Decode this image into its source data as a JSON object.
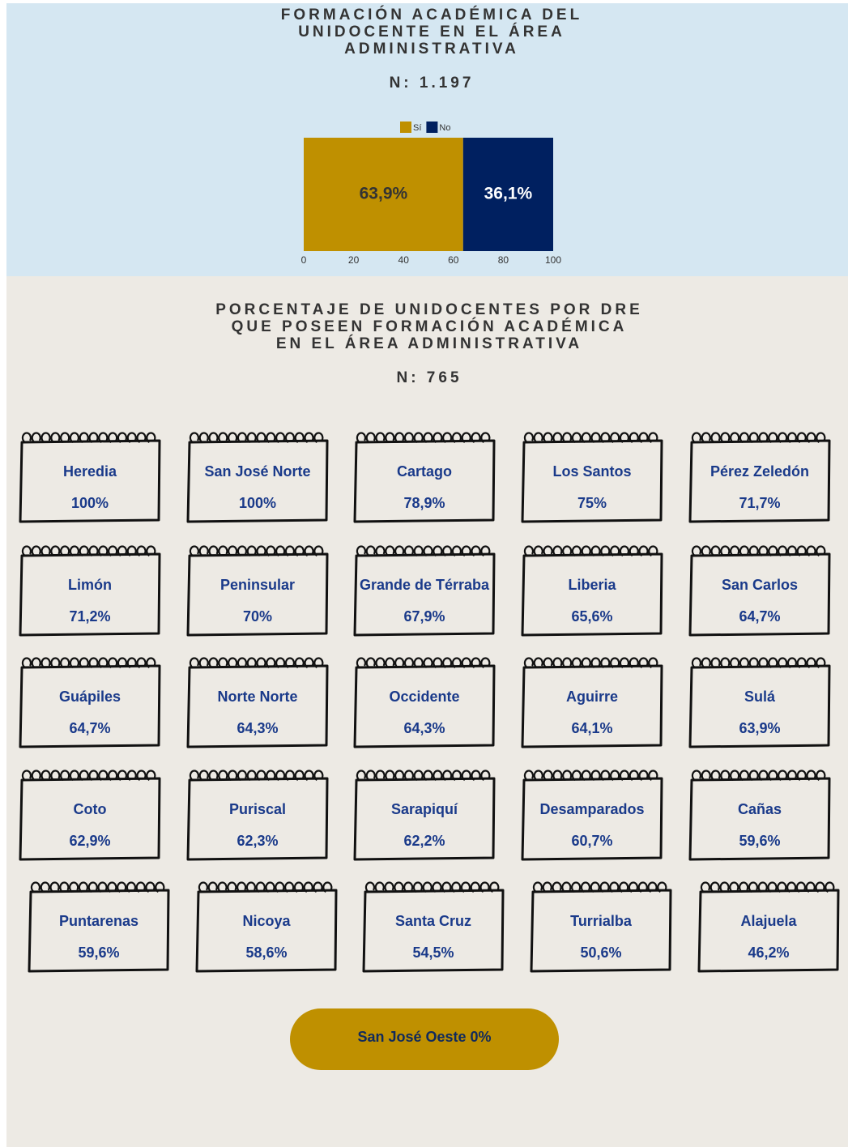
{
  "chart_data": {
    "type": "bar",
    "orientation": "horizontal",
    "stacked": true,
    "title": [
      "FORMACIÓN ACADÉMICA DEL",
      "UNIDOCENTE EN EL ÁREA",
      "ADMINISTRATIVA"
    ],
    "subtitle": "N: 1.197",
    "categories": [
      null
    ],
    "series": [
      {
        "name": "Sí",
        "color": "#bf9000",
        "values": [
          63.9
        ],
        "value_labels": [
          "63,9%"
        ]
      },
      {
        "name": "No",
        "color": "#002060",
        "values": [
          36.1
        ],
        "value_labels": [
          "36,1%"
        ]
      }
    ],
    "xlim": [
      0,
      100
    ],
    "xticks": [
      0,
      20,
      40,
      60,
      80,
      100
    ],
    "grid": false,
    "legend": "top"
  },
  "dre_section": {
    "title": [
      "PORCENTAJE DE UNIDOCENTES POR DRE",
      "QUE POSEEN FORMACIÓN ACADÉMICA",
      "EN EL ÁREA ADMINISTRATIVA"
    ],
    "subtitle": "N: 765",
    "cards": [
      {
        "name": "Heredia",
        "value": "100%"
      },
      {
        "name": "San José Norte",
        "value": "100%"
      },
      {
        "name": "Cartago",
        "value": "78,9%"
      },
      {
        "name": "Los Santos",
        "value": "75%"
      },
      {
        "name": "Pérez Zeledón",
        "value": "71,7%"
      },
      {
        "name": "Limón",
        "value": "71,2%"
      },
      {
        "name": "Peninsular",
        "value": "70%"
      },
      {
        "name": "Grande de Térraba",
        "value": "67,9%"
      },
      {
        "name": "Liberia",
        "value": "65,6%"
      },
      {
        "name": "San Carlos",
        "value": "64,7%"
      },
      {
        "name": "Guápiles",
        "value": "64,7%"
      },
      {
        "name": "Norte Norte",
        "value": "64,3%"
      },
      {
        "name": "Occidente",
        "value": "64,3%"
      },
      {
        "name": "Aguirre",
        "value": "64,1%"
      },
      {
        "name": "Sulá",
        "value": "63,9%"
      },
      {
        "name": "Coto",
        "value": "62,9%"
      },
      {
        "name": "Puriscal",
        "value": "62,3%"
      },
      {
        "name": "Sarapiquí",
        "value": "62,2%"
      },
      {
        "name": "Desamparados",
        "value": "60,7%"
      },
      {
        "name": "Cañas",
        "value": "59,6%"
      },
      {
        "name": "Puntarenas",
        "value": "59,6%"
      },
      {
        "name": "Nicoya",
        "value": "58,6%"
      },
      {
        "name": "Santa Cruz",
        "value": "54,5%"
      },
      {
        "name": "Turrialba",
        "value": "50,6%"
      },
      {
        "name": "Alajuela",
        "value": "46,2%"
      }
    ],
    "footer": "San José Oeste 0%"
  }
}
